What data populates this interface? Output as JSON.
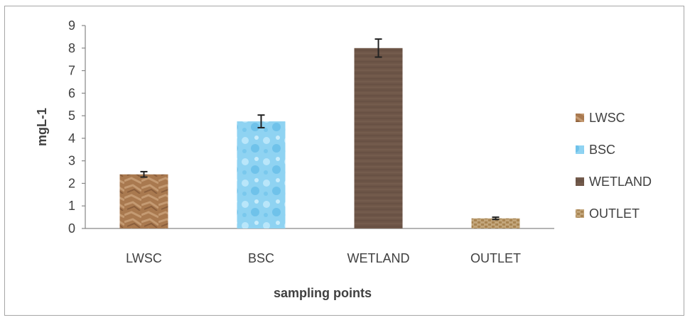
{
  "chart_data": {
    "type": "bar",
    "categories": [
      "LWSC",
      "BSC",
      "WETLAND",
      "OUTLET"
    ],
    "values": [
      2.4,
      4.75,
      8.0,
      0.45
    ],
    "errors": [
      0.12,
      0.28,
      0.4,
      0.05
    ],
    "xlabel": "sampling points",
    "ylabel": "mgL-1",
    "ylim": [
      0,
      9
    ],
    "yticks": [
      0,
      1,
      2,
      3,
      4,
      5,
      6,
      7,
      8,
      9
    ],
    "grid": false,
    "legend_position": "right",
    "colors": {
      "LWSC": "#a9794f",
      "BSC": "#8fd3f2",
      "WETLAND": "#6e5648",
      "OUTLET": "#c2a57a"
    },
    "legend": [
      "LWSC",
      "BSC",
      "WETLAND",
      "OUTLET"
    ]
  }
}
